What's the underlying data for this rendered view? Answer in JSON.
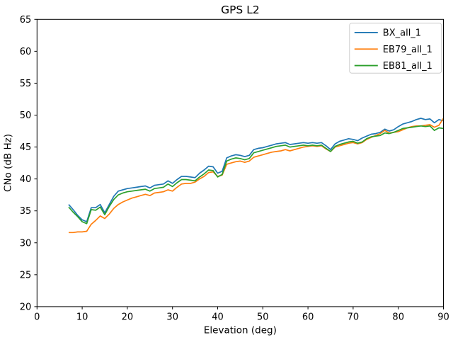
{
  "figure": {
    "title": "GPS L2"
  },
  "chart_data": {
    "type": "line",
    "title": "GPS L2",
    "xlabel": "Elevation (deg)",
    "ylabel": "CNo (dB Hz)",
    "xlim": [
      0,
      90
    ],
    "ylim": [
      20,
      65
    ],
    "xticks": [
      0,
      10,
      20,
      30,
      40,
      50,
      60,
      70,
      80,
      90
    ],
    "yticks": [
      20,
      25,
      30,
      35,
      40,
      45,
      50,
      55,
      60,
      65
    ],
    "grid": false,
    "legend_position": "upper right",
    "x": [
      7,
      8,
      9,
      10,
      11,
      12,
      13,
      14,
      15,
      16,
      17,
      18,
      19,
      20,
      21,
      22,
      23,
      24,
      25,
      26,
      27,
      28,
      29,
      30,
      31,
      32,
      33,
      34,
      35,
      36,
      37,
      38,
      39,
      40,
      41,
      42,
      43,
      44,
      45,
      46,
      47,
      48,
      49,
      50,
      51,
      52,
      53,
      54,
      55,
      56,
      57,
      58,
      59,
      60,
      61,
      62,
      63,
      64,
      65,
      66,
      67,
      68,
      69,
      70,
      71,
      72,
      73,
      74,
      75,
      76,
      77,
      78,
      79,
      80,
      81,
      82,
      83,
      84,
      85,
      86,
      87,
      88,
      89,
      90
    ],
    "series": [
      {
        "name": "BX_all_1",
        "color": "#1f77b4",
        "values": [
          36.0,
          35.2,
          34.3,
          33.6,
          33.3,
          35.5,
          35.5,
          36.0,
          34.7,
          36.0,
          37.3,
          38.1,
          38.3,
          38.5,
          38.6,
          38.7,
          38.8,
          38.9,
          38.6,
          39.0,
          39.1,
          39.2,
          39.7,
          39.3,
          39.9,
          40.4,
          40.4,
          40.3,
          40.2,
          40.9,
          41.4,
          42.0,
          41.9,
          40.9,
          41.2,
          43.3,
          43.6,
          43.8,
          43.7,
          43.5,
          43.7,
          44.6,
          44.8,
          44.9,
          45.1,
          45.3,
          45.5,
          45.6,
          45.7,
          45.4,
          45.5,
          45.6,
          45.7,
          45.6,
          45.7,
          45.6,
          45.7,
          45.2,
          44.6,
          45.5,
          45.9,
          46.1,
          46.3,
          46.2,
          46.0,
          46.4,
          46.7,
          47.0,
          47.1,
          47.3,
          47.8,
          47.5,
          47.7,
          48.2,
          48.6,
          48.8,
          49.0,
          49.3,
          49.5,
          49.3,
          49.4,
          48.8,
          49.3,
          49.1
        ]
      },
      {
        "name": "EB79_all_1",
        "color": "#ff7f0e",
        "values": [
          31.6,
          31.6,
          31.7,
          31.7,
          31.8,
          32.9,
          33.5,
          34.2,
          33.8,
          34.5,
          35.4,
          36.0,
          36.4,
          36.7,
          37.0,
          37.2,
          37.4,
          37.6,
          37.4,
          37.8,
          37.9,
          38.0,
          38.3,
          38.1,
          38.7,
          39.2,
          39.3,
          39.3,
          39.5,
          40.0,
          40.4,
          41.0,
          41.1,
          40.4,
          40.6,
          42.3,
          42.5,
          42.7,
          42.8,
          42.6,
          42.8,
          43.4,
          43.6,
          43.8,
          44.0,
          44.2,
          44.3,
          44.4,
          44.6,
          44.4,
          44.6,
          44.8,
          45.0,
          45.1,
          45.2,
          45.1,
          45.2,
          44.7,
          44.3,
          45.0,
          45.2,
          45.4,
          45.6,
          45.7,
          45.5,
          45.7,
          46.2,
          46.5,
          46.8,
          47.1,
          47.6,
          47.2,
          47.3,
          47.4,
          47.7,
          48.0,
          48.2,
          48.3,
          48.3,
          48.4,
          48.5,
          48.1,
          48.4,
          49.5
        ]
      },
      {
        "name": "EB81_all_1",
        "color": "#2ca02c",
        "values": [
          35.6,
          34.8,
          34.1,
          33.3,
          33.0,
          35.2,
          35.1,
          35.6,
          34.4,
          35.7,
          36.8,
          37.5,
          37.8,
          38.0,
          38.1,
          38.2,
          38.3,
          38.4,
          38.1,
          38.5,
          38.6,
          38.7,
          39.2,
          38.8,
          39.4,
          39.9,
          39.9,
          39.8,
          39.7,
          40.3,
          40.8,
          41.4,
          41.3,
          40.3,
          40.7,
          42.8,
          43.1,
          43.3,
          43.2,
          43.0,
          43.2,
          44.1,
          44.3,
          44.5,
          44.7,
          44.9,
          45.1,
          45.2,
          45.3,
          45.0,
          45.1,
          45.2,
          45.3,
          45.2,
          45.3,
          45.2,
          45.3,
          44.8,
          44.3,
          45.1,
          45.4,
          45.6,
          45.8,
          45.9,
          45.6,
          45.8,
          46.3,
          46.6,
          46.7,
          46.8,
          47.2,
          47.1,
          47.3,
          47.6,
          47.9,
          48.0,
          48.1,
          48.2,
          48.3,
          48.2,
          48.3,
          47.6,
          48.0,
          47.9
        ]
      }
    ]
  }
}
